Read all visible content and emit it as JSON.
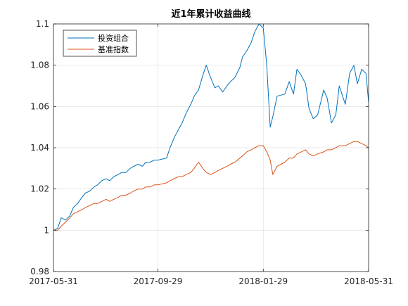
{
  "chart_data": {
    "type": "line",
    "title": "近1年累计收益曲线",
    "xlabel": "",
    "ylabel": "",
    "x_ticks": [
      "2017-05-31",
      "2017-09-29",
      "2018-01-29",
      "2018-05-31"
    ],
    "x_range": [
      "2017-05-31",
      "2018-05-31"
    ],
    "ylim": [
      0.98,
      1.1
    ],
    "y_ticks": [
      "0.98",
      "1",
      "1.02",
      "1.04",
      "1.06",
      "1.08",
      "1.1"
    ],
    "grid": true,
    "legend_position": "top-left",
    "series": [
      {
        "name": "投资组合",
        "color": "#0072BD",
        "points": [
          [
            "2017-05-31",
            1.0
          ],
          [
            "2017-06-05",
            1.001
          ],
          [
            "2017-06-09",
            1.006
          ],
          [
            "2017-06-14",
            1.005
          ],
          [
            "2017-06-19",
            1.007
          ],
          [
            "2017-06-23",
            1.011
          ],
          [
            "2017-06-28",
            1.013
          ],
          [
            "2017-07-03",
            1.016
          ],
          [
            "2017-07-07",
            1.018
          ],
          [
            "2017-07-12",
            1.019
          ],
          [
            "2017-07-17",
            1.021
          ],
          [
            "2017-07-21",
            1.022
          ],
          [
            "2017-07-26",
            1.024
          ],
          [
            "2017-07-31",
            1.025
          ],
          [
            "2017-08-04",
            1.024
          ],
          [
            "2017-08-09",
            1.026
          ],
          [
            "2017-08-14",
            1.027
          ],
          [
            "2017-08-18",
            1.028
          ],
          [
            "2017-08-23",
            1.028
          ],
          [
            "2017-08-28",
            1.03
          ],
          [
            "2017-09-01",
            1.031
          ],
          [
            "2017-09-06",
            1.032
          ],
          [
            "2017-09-11",
            1.031
          ],
          [
            "2017-09-15",
            1.033
          ],
          [
            "2017-09-20",
            1.033
          ],
          [
            "2017-09-25",
            1.034
          ],
          [
            "2017-09-29",
            1.034
          ],
          [
            "2017-10-09",
            1.035
          ],
          [
            "2017-10-13",
            1.04
          ],
          [
            "2017-10-18",
            1.045
          ],
          [
            "2017-10-23",
            1.049
          ],
          [
            "2017-10-27",
            1.052
          ],
          [
            "2017-11-01",
            1.057
          ],
          [
            "2017-11-06",
            1.061
          ],
          [
            "2017-11-10",
            1.065
          ],
          [
            "2017-11-15",
            1.068
          ],
          [
            "2017-11-20",
            1.075
          ],
          [
            "2017-11-24",
            1.08
          ],
          [
            "2017-11-29",
            1.074
          ],
          [
            "2017-12-04",
            1.069
          ],
          [
            "2017-12-08",
            1.07
          ],
          [
            "2017-12-13",
            1.067
          ],
          [
            "2017-12-18",
            1.07
          ],
          [
            "2017-12-22",
            1.072
          ],
          [
            "2017-12-27",
            1.074
          ],
          [
            "2018-01-02",
            1.079
          ],
          [
            "2018-01-05",
            1.084
          ],
          [
            "2018-01-10",
            1.087
          ],
          [
            "2018-01-15",
            1.091
          ],
          [
            "2018-01-19",
            1.096
          ],
          [
            "2018-01-24",
            1.1
          ],
          [
            "2018-01-29",
            1.098
          ],
          [
            "2018-02-02",
            1.08
          ],
          [
            "2018-02-06",
            1.05
          ],
          [
            "2018-02-09",
            1.055
          ],
          [
            "2018-02-14",
            1.065
          ],
          [
            "2018-02-23",
            1.066
          ],
          [
            "2018-02-28",
            1.072
          ],
          [
            "2018-03-05",
            1.066
          ],
          [
            "2018-03-09",
            1.078
          ],
          [
            "2018-03-14",
            1.075
          ],
          [
            "2018-03-19",
            1.071
          ],
          [
            "2018-03-23",
            1.059
          ],
          [
            "2018-03-28",
            1.054
          ],
          [
            "2018-04-02",
            1.056
          ],
          [
            "2018-04-09",
            1.068
          ],
          [
            "2018-04-13",
            1.064
          ],
          [
            "2018-04-18",
            1.052
          ],
          [
            "2018-04-23",
            1.056
          ],
          [
            "2018-04-27",
            1.07
          ],
          [
            "2018-05-04",
            1.061
          ],
          [
            "2018-05-09",
            1.076
          ],
          [
            "2018-05-14",
            1.08
          ],
          [
            "2018-05-18",
            1.071
          ],
          [
            "2018-05-23",
            1.078
          ],
          [
            "2018-05-28",
            1.076
          ],
          [
            "2018-05-31",
            1.062
          ]
        ]
      },
      {
        "name": "基准指数",
        "color": "#D95319",
        "points": [
          [
            "2017-05-31",
            1.0
          ],
          [
            "2017-06-05",
            1.0
          ],
          [
            "2017-06-09",
            1.002
          ],
          [
            "2017-06-14",
            1.004
          ],
          [
            "2017-06-19",
            1.006
          ],
          [
            "2017-06-23",
            1.008
          ],
          [
            "2017-06-28",
            1.009
          ],
          [
            "2017-07-03",
            1.01
          ],
          [
            "2017-07-07",
            1.011
          ],
          [
            "2017-07-12",
            1.012
          ],
          [
            "2017-07-17",
            1.013
          ],
          [
            "2017-07-21",
            1.013
          ],
          [
            "2017-07-26",
            1.014
          ],
          [
            "2017-07-31",
            1.015
          ],
          [
            "2017-08-04",
            1.014
          ],
          [
            "2017-08-09",
            1.015
          ],
          [
            "2017-08-14",
            1.016
          ],
          [
            "2017-08-18",
            1.017
          ],
          [
            "2017-08-23",
            1.017
          ],
          [
            "2017-08-28",
            1.018
          ],
          [
            "2017-09-01",
            1.019
          ],
          [
            "2017-09-06",
            1.02
          ],
          [
            "2017-09-11",
            1.02
          ],
          [
            "2017-09-15",
            1.021
          ],
          [
            "2017-09-20",
            1.021
          ],
          [
            "2017-09-25",
            1.022
          ],
          [
            "2017-09-29",
            1.022
          ],
          [
            "2017-10-09",
            1.023
          ],
          [
            "2017-10-13",
            1.024
          ],
          [
            "2017-10-18",
            1.025
          ],
          [
            "2017-10-23",
            1.026
          ],
          [
            "2017-10-27",
            1.026
          ],
          [
            "2017-11-01",
            1.027
          ],
          [
            "2017-11-06",
            1.028
          ],
          [
            "2017-11-10",
            1.03
          ],
          [
            "2017-11-15",
            1.033
          ],
          [
            "2017-11-20",
            1.03
          ],
          [
            "2017-11-24",
            1.028
          ],
          [
            "2017-11-29",
            1.027
          ],
          [
            "2017-12-04",
            1.028
          ],
          [
            "2017-12-08",
            1.029
          ],
          [
            "2017-12-13",
            1.03
          ],
          [
            "2017-12-18",
            1.031
          ],
          [
            "2017-12-22",
            1.032
          ],
          [
            "2017-12-27",
            1.033
          ],
          [
            "2018-01-02",
            1.035
          ],
          [
            "2018-01-05",
            1.036
          ],
          [
            "2018-01-10",
            1.038
          ],
          [
            "2018-01-15",
            1.039
          ],
          [
            "2018-01-19",
            1.04
          ],
          [
            "2018-01-24",
            1.041
          ],
          [
            "2018-01-29",
            1.041
          ],
          [
            "2018-02-02",
            1.038
          ],
          [
            "2018-02-06",
            1.034
          ],
          [
            "2018-02-09",
            1.027
          ],
          [
            "2018-02-14",
            1.031
          ],
          [
            "2018-02-23",
            1.033
          ],
          [
            "2018-02-28",
            1.035
          ],
          [
            "2018-03-05",
            1.035
          ],
          [
            "2018-03-09",
            1.037
          ],
          [
            "2018-03-14",
            1.038
          ],
          [
            "2018-03-19",
            1.039
          ],
          [
            "2018-03-23",
            1.037
          ],
          [
            "2018-03-28",
            1.036
          ],
          [
            "2018-04-02",
            1.037
          ],
          [
            "2018-04-09",
            1.038
          ],
          [
            "2018-04-13",
            1.039
          ],
          [
            "2018-04-18",
            1.039
          ],
          [
            "2018-04-23",
            1.04
          ],
          [
            "2018-04-27",
            1.041
          ],
          [
            "2018-05-04",
            1.041
          ],
          [
            "2018-05-09",
            1.042
          ],
          [
            "2018-05-14",
            1.043
          ],
          [
            "2018-05-18",
            1.043
          ],
          [
            "2018-05-23",
            1.042
          ],
          [
            "2018-05-28",
            1.041
          ],
          [
            "2018-05-31",
            1.04
          ]
        ]
      }
    ]
  }
}
